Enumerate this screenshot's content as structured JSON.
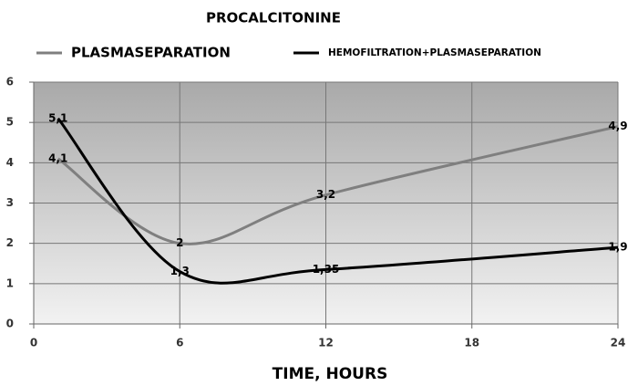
{
  "chart_data": {
    "type": "line",
    "title": "PROCALCITONINE",
    "x_label": "TIME, HOURS",
    "x": [
      1,
      6,
      12,
      24
    ],
    "series": [
      {
        "name": "PLASMASEPARATION",
        "color": "#7f7f7f",
        "values": [
          4.1,
          2,
          3.2,
          4.9
        ],
        "value_labels": [
          "4,1",
          "2",
          "3,2",
          "4,9"
        ]
      },
      {
        "name": "HEMOFILTRATION+PLASMASEPARATION",
        "color": "#000000",
        "values": [
          5.1,
          1.3,
          1.35,
          1.9
        ],
        "value_labels": [
          "5,1",
          "1,3",
          "1,35",
          "1,9"
        ]
      }
    ],
    "xlim": [
      0,
      24
    ],
    "xticks": [
      0,
      6,
      12,
      18,
      24
    ],
    "ylim": [
      0,
      6
    ],
    "yticks": [
      0,
      1,
      2,
      3,
      4,
      5,
      6
    ],
    "grid": true,
    "smooth": true
  }
}
